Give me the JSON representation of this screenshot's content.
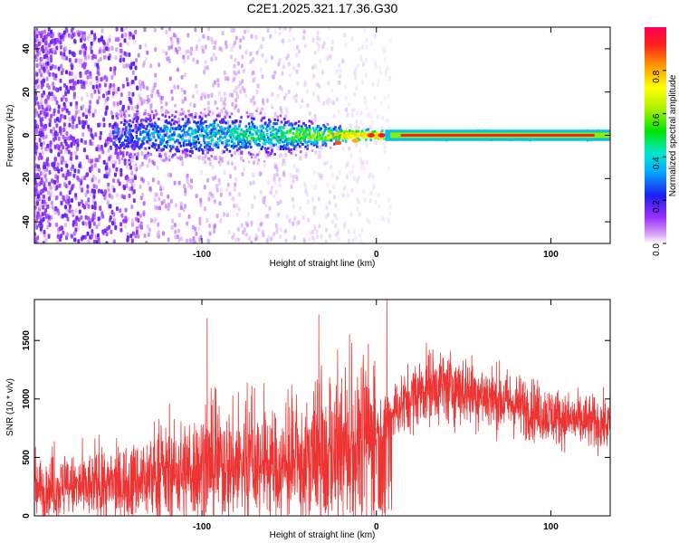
{
  "title": "C2E1.2025.321.17.36.G30",
  "chart_data": [
    {
      "type": "heatmap",
      "xlabel": "Height of straight line (km)",
      "ylabel": "Frequency (Hz)",
      "xlim": [
        -196,
        134
      ],
      "ylim": [
        -50,
        50
      ],
      "x_ticks": [
        -100,
        0,
        100
      ],
      "y_ticks": [
        -40,
        -20,
        0,
        20,
        40
      ],
      "colorbar": {
        "label": "Normalized spectral amplitude",
        "range": [
          0,
          1
        ],
        "ticks": [
          0.0,
          0.2,
          0.4,
          0.6,
          0.8
        ],
        "tick_labels": [
          "0.0",
          "0.2",
          "0.4",
          "0.6",
          "0.8"
        ]
      },
      "ridge": [
        {
          "x": -140,
          "spread_hz": 9,
          "amp": 0.3
        },
        {
          "x": -100,
          "spread_hz": 8,
          "amp": 0.45
        },
        {
          "x": -60,
          "spread_hz": 7,
          "amp": 0.5
        },
        {
          "x": -25,
          "spread_hz": 3,
          "amp": 0.75
        },
        {
          "x": 0,
          "spread_hz": 2,
          "amp": 0.8
        },
        {
          "x": 20,
          "spread_hz": 2,
          "amp": 0.95
        },
        {
          "x": 130,
          "spread_hz": 2,
          "amp": 0.9
        }
      ]
    },
    {
      "type": "line",
      "xlabel": "Height of straight line (km)",
      "ylabel": "SNR (10 * v/v)",
      "xlim": [
        -196,
        134
      ],
      "ylim": [
        0,
        1850
      ],
      "x_ticks": [
        -100,
        0,
        100
      ],
      "y_ticks": [
        0,
        500,
        1000,
        1500
      ],
      "series_color": "#ee3333",
      "envelope": [
        {
          "x": -196,
          "mean": 220
        },
        {
          "x": -150,
          "mean": 260
        },
        {
          "x": -120,
          "mean": 350
        },
        {
          "x": -100,
          "mean": 420
        },
        {
          "x": -70,
          "mean": 440
        },
        {
          "x": -50,
          "mean": 400
        },
        {
          "x": -30,
          "mean": 450
        },
        {
          "x": -10,
          "mean": 600
        },
        {
          "x": 10,
          "mean": 900
        },
        {
          "x": 30,
          "mean": 1120
        },
        {
          "x": 50,
          "mean": 1080
        },
        {
          "x": 80,
          "mean": 950
        },
        {
          "x": 110,
          "mean": 820
        },
        {
          "x": 134,
          "mean": 780
        }
      ],
      "spikes": [
        {
          "x": -97,
          "value": 1690
        },
        {
          "x": -33,
          "value": 1720
        },
        {
          "x": 6,
          "value": 1850
        },
        {
          "x": 7,
          "value": 60
        }
      ]
    }
  ]
}
